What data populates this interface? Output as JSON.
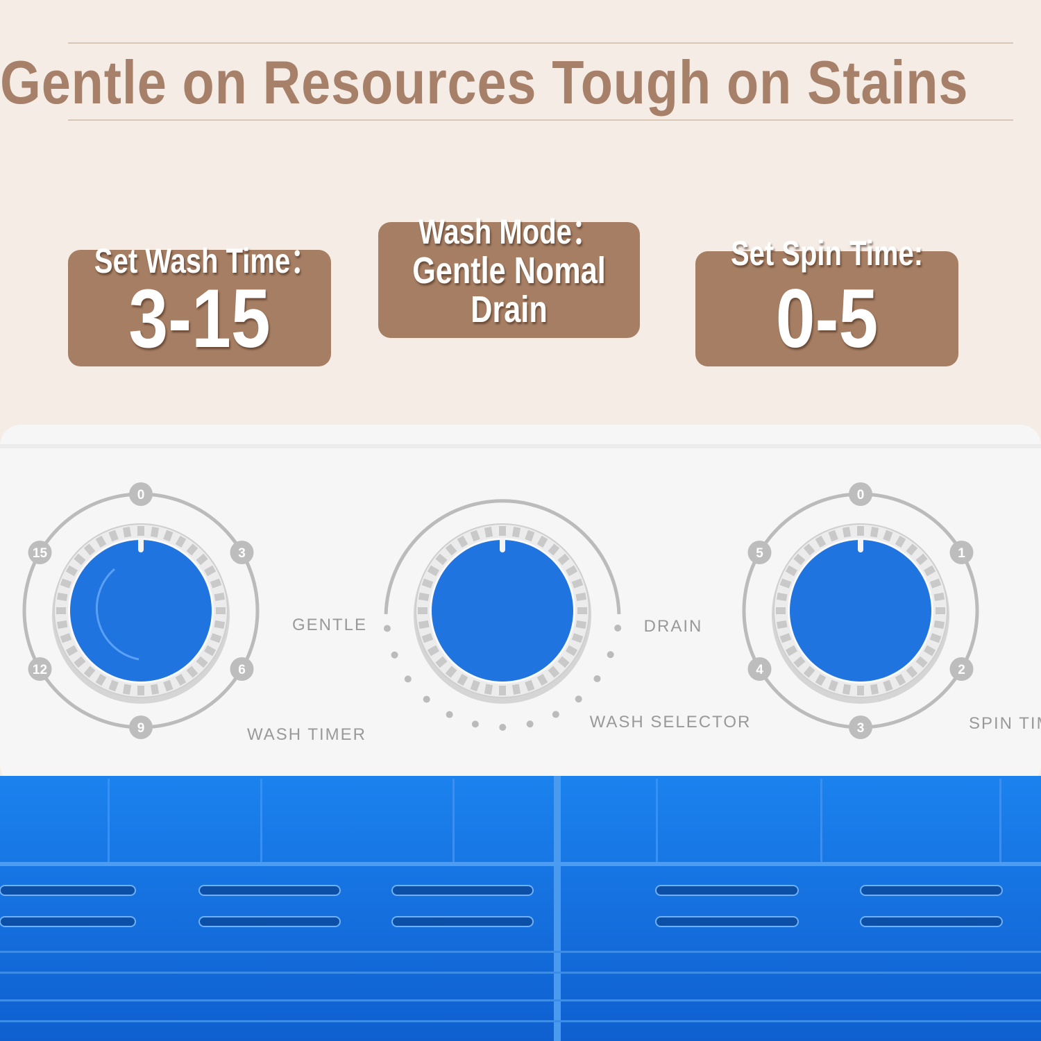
{
  "headline": "Gentle on Resources Tough on Stains",
  "boxes": {
    "wash_time": {
      "label": "Set Wash Time：",
      "value": "3-15"
    },
    "wash_mode": {
      "label": "Wash Mode：",
      "line1": "Gentle  Nomal",
      "line2": "Drain"
    },
    "spin_time": {
      "label": "Set Spin Time:",
      "value": "0-5"
    }
  },
  "panel": {
    "wash_timer": {
      "label": "WASH TIMER",
      "marks": [
        "0",
        "3",
        "6",
        "9",
        "12",
        "15"
      ]
    },
    "wash_selector": {
      "label": "WASH SELECTOR",
      "left": "GENTLE",
      "right": "DRAIN"
    },
    "spin_timer": {
      "label": "SPIN TIMER",
      "marks": [
        "0",
        "1",
        "2",
        "3",
        "4",
        "5"
      ]
    }
  },
  "colors": {
    "accent": "#a57e63",
    "knob": "#1f74e0",
    "tub": "#1a7de8",
    "panel": "#f7f7f7"
  }
}
